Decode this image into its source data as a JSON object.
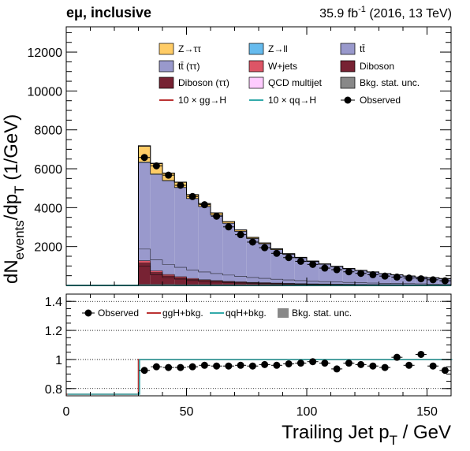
{
  "header": {
    "channel": "eμ, inclusive",
    "lumi_value": "35.9 fb",
    "lumi_exp": "-1",
    "lumi_rest": " (2016, 13 TeV)"
  },
  "axes": {
    "ylabel_main": "dN",
    "ylabel_sub_events": "events",
    "ylabel_mid": "/dp",
    "ylabel_sub_T": "T",
    "ylabel_unit": " (1/GeV)",
    "xlabel_main": "Trailing Jet p",
    "xlabel_sub": "T",
    "xlabel_unit": " / GeV"
  },
  "colors": {
    "ztautau": "#ffcc66",
    "zll": "#66bbee",
    "ttbar": "#9999cc",
    "ttbar_tautau": "#9999cc",
    "wjets": "#dd5566",
    "diboson": "#772233",
    "diboson_tautau": "#772233",
    "qcd": "#ffccff",
    "unc": "#888888",
    "ggH": "#bb3333",
    "qqH": "#33aaaa",
    "observed": "#000000"
  },
  "legend_main": [
    {
      "key": "ztautau",
      "label": "Z→ττ",
      "style": "fill"
    },
    {
      "key": "zll",
      "label": "Z→ll",
      "style": "fill"
    },
    {
      "key": "ttbar",
      "label": "tt̄",
      "style": "fill"
    },
    {
      "key": "ttbar_tautau",
      "label": "tt̄ (ττ)",
      "style": "fill"
    },
    {
      "key": "wjets",
      "label": "W+jets",
      "style": "fill"
    },
    {
      "key": "diboson",
      "label": "Diboson",
      "style": "fill"
    },
    {
      "key": "diboson_tautau",
      "label": "Diboson (ττ)",
      "style": "fill"
    },
    {
      "key": "qcd",
      "label": "QCD multijet",
      "style": "fill"
    },
    {
      "key": "unc",
      "label": "Bkg. stat. unc.",
      "style": "fill"
    },
    {
      "key": "ggH",
      "label": "10 × gg→H",
      "style": "line"
    },
    {
      "key": "qqH",
      "label": "10 × qq→H",
      "style": "line"
    },
    {
      "key": "observed",
      "label": "Observed",
      "style": "marker"
    }
  ],
  "legend_ratio": [
    {
      "key": "observed",
      "label": "Observed",
      "style": "marker"
    },
    {
      "key": "ggH",
      "label": "ggH+bkg.",
      "style": "line"
    },
    {
      "key": "qqH",
      "label": "qqH+bkg.",
      "style": "line"
    },
    {
      "key": "unc",
      "label": "Bkg. stat. unc.",
      "style": "fill"
    }
  ],
  "chart_data": [
    {
      "type": "bar",
      "panel": "main",
      "stacked": true,
      "xlim": [
        0,
        160
      ],
      "ylim": [
        0,
        13300
      ],
      "xticks": [
        0,
        50,
        100,
        150
      ],
      "yticks": [
        2000,
        4000,
        6000,
        8000,
        10000,
        12000
      ],
      "bin_edges": [
        0,
        30,
        35,
        40,
        45,
        50,
        55,
        60,
        65,
        70,
        75,
        80,
        85,
        90,
        95,
        100,
        105,
        110,
        115,
        120,
        125,
        130,
        135,
        140,
        145,
        150,
        155,
        160
      ],
      "series": [
        {
          "key": "diboson_tautau",
          "name": "Diboson (ττ)",
          "values": [
            0,
            1000,
            550,
            400,
            320,
            250,
            200,
            170,
            140,
            120,
            100,
            90,
            75,
            65,
            55,
            50,
            45,
            40,
            35,
            30,
            28,
            25,
            22,
            20,
            18,
            16,
            14
          ]
        },
        {
          "key": "diboson",
          "name": "Diboson",
          "values": [
            0,
            150,
            110,
            90,
            75,
            65,
            55,
            50,
            45,
            40,
            35,
            32,
            28,
            25,
            22,
            20,
            18,
            16,
            15,
            13,
            12,
            11,
            10,
            9,
            8,
            7,
            6
          ]
        },
        {
          "key": "wjets",
          "name": "W+jets",
          "values": [
            0,
            120,
            90,
            70,
            55,
            45,
            38,
            32,
            27,
            23,
            20,
            17,
            15,
            13,
            11,
            10,
            9,
            8,
            7,
            6,
            5,
            5,
            4,
            4,
            3,
            3,
            3
          ]
        },
        {
          "key": "ttbar_tautau",
          "name": "tt̄ (ττ)",
          "values": [
            0,
            600,
            560,
            520,
            480,
            440,
            400,
            360,
            320,
            285,
            255,
            225,
            200,
            178,
            158,
            140,
            125,
            110,
            98,
            87,
            77,
            68,
            61,
            54,
            48,
            43,
            38
          ]
        },
        {
          "key": "ttbar",
          "name": "tt̄",
          "values": [
            0,
            4450,
            4400,
            4300,
            4100,
            3660,
            3360,
            3000,
            2660,
            2310,
            2000,
            1770,
            1520,
            1320,
            1170,
            1010,
            890,
            790,
            700,
            630,
            560,
            490,
            440,
            390,
            350,
            320,
            290
          ]
        },
        {
          "key": "zll",
          "name": "Z→ll",
          "values": [
            0,
            30,
            25,
            20,
            18,
            15,
            12,
            10,
            9,
            8,
            7,
            6,
            5,
            4,
            4,
            3,
            3,
            3,
            2,
            2,
            2,
            2,
            1,
            1,
            1,
            1,
            1
          ]
        },
        {
          "key": "ztautau",
          "name": "Z→ττ",
          "values": [
            0,
            800,
            520,
            360,
            250,
            180,
            135,
            100,
            75,
            60,
            48,
            40,
            32,
            26,
            22,
            18,
            15,
            13,
            11,
            9,
            8,
            7,
            6,
            5,
            4,
            4,
            3
          ]
        },
        {
          "key": "qcd",
          "name": "QCD multijet",
          "values": [
            0,
            30,
            25,
            20,
            16,
            13,
            10,
            8,
            7,
            6,
            5,
            4,
            3,
            3,
            2,
            2,
            2,
            2,
            1,
            1,
            1,
            1,
            1,
            1,
            1,
            1,
            1
          ]
        }
      ],
      "observed": {
        "x": [
          32.5,
          37.5,
          42.5,
          47.5,
          52.5,
          57.5,
          62.5,
          67.5,
          72.5,
          77.5,
          82.5,
          87.5,
          92.5,
          97.5,
          102.5,
          107.5,
          112.5,
          117.5,
          122.5,
          127.5,
          132.5,
          137.5,
          142.5,
          147.5,
          152.5,
          157.5
        ],
        "y": [
          6580,
          6150,
          5670,
          5150,
          4570,
          4150,
          3560,
          3010,
          2610,
          2230,
          1940,
          1650,
          1430,
          1240,
          1080,
          890,
          810,
          700,
          620,
          550,
          480,
          430,
          380,
          340,
          290,
          240
        ]
      },
      "signal_ggH_x10": [
        0,
        12,
        10,
        8,
        7,
        6,
        5,
        4,
        4,
        3,
        3,
        2,
        2,
        2,
        2,
        1,
        1,
        1,
        1,
        1,
        1,
        1,
        1,
        1,
        1,
        1,
        1
      ],
      "signal_qqH_x10": [
        0,
        10,
        9,
        8,
        7,
        6,
        5,
        5,
        4,
        4,
        3,
        3,
        3,
        2,
        2,
        2,
        2,
        2,
        1,
        1,
        1,
        1,
        1,
        1,
        1,
        1,
        1
      ]
    },
    {
      "type": "scatter",
      "panel": "ratio",
      "xlim": [
        0,
        160
      ],
      "ylim": [
        0.75,
        1.45
      ],
      "xticks": [
        0,
        50,
        100,
        150
      ],
      "yticks": [
        0.8,
        1.0,
        1.2,
        1.4
      ],
      "ytick_labels": [
        "0.8",
        "1",
        "1.2",
        "1.4"
      ],
      "gridlines": [
        0.8,
        1.0,
        1.2,
        1.4
      ],
      "observed": {
        "x": [
          32.5,
          37.5,
          42.5,
          47.5,
          52.5,
          57.5,
          62.5,
          67.5,
          72.5,
          77.5,
          82.5,
          87.5,
          92.5,
          97.5,
          102.5,
          107.5,
          112.5,
          117.5,
          122.5,
          127.5,
          132.5,
          137.5,
          142.5,
          147.5,
          152.5,
          157.5
        ],
        "y": [
          0.925,
          0.95,
          0.945,
          0.945,
          0.95,
          0.96,
          0.955,
          0.955,
          0.96,
          0.955,
          0.965,
          0.96,
          0.97,
          0.975,
          0.985,
          0.975,
          0.935,
          0.975,
          0.965,
          0.955,
          0.945,
          1.015,
          0.96,
          1.035,
          0.955,
          0.925
        ]
      },
      "ggH_ratio": {
        "x_edges": [
          0,
          30,
          30,
          160
        ],
        "y": [
          0.75,
          0.75,
          1.0,
          1.0
        ]
      },
      "qqH_ratio": {
        "x_edges": [
          0,
          30,
          30,
          160
        ],
        "y": [
          0.75,
          0.75,
          1.0,
          1.0
        ]
      }
    }
  ]
}
